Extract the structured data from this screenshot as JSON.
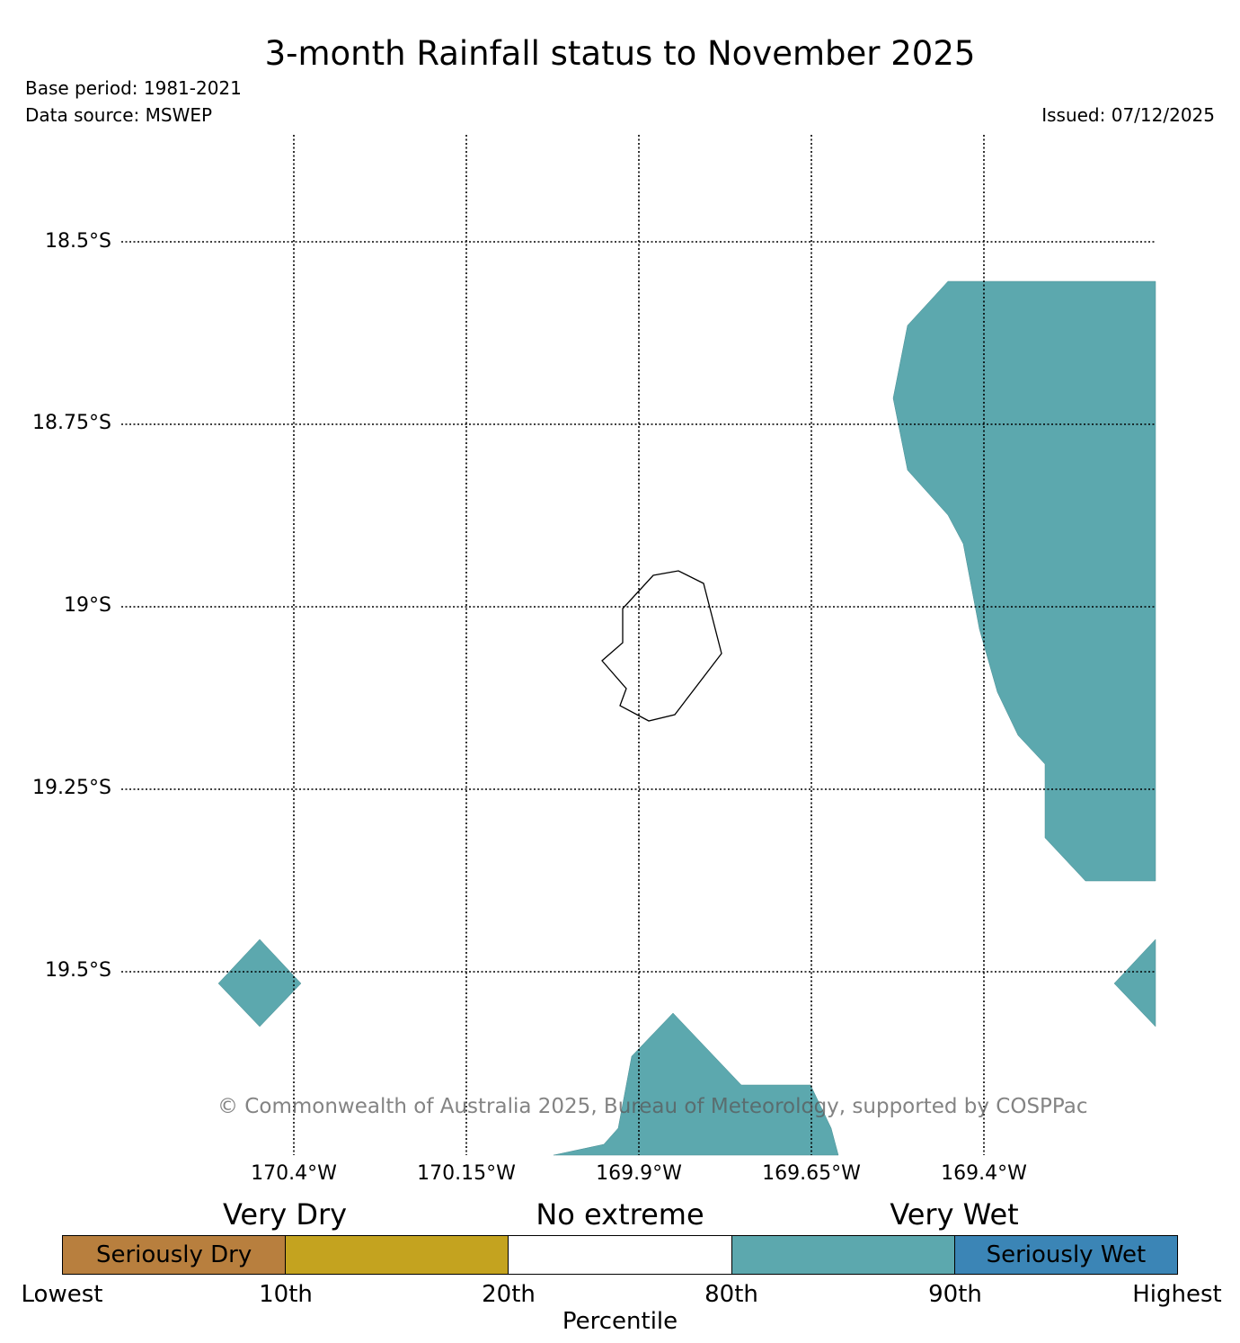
{
  "title": "3-month Rainfall status to November 2025",
  "base_period": "Base period: 1981-2021",
  "data_source": "Data source: MSWEP",
  "issued": "Issued: 07/12/2025",
  "map": {
    "lat_labels": [
      "18.5°S",
      "18.75°S",
      "19°S",
      "19.25°S",
      "19.5°S"
    ],
    "lon_labels": [
      "170.4°W",
      "170.15°W",
      "169.9°W",
      "169.65°W",
      "169.4°W"
    ],
    "regions": [
      {
        "name": "east-wet-region",
        "category": "Very Wet"
      },
      {
        "name": "west-wet-patch",
        "category": "Very Wet"
      },
      {
        "name": "south-wet-region",
        "category": "Very Wet"
      },
      {
        "name": "east-edge-wet-patch",
        "category": "Very Wet"
      }
    ],
    "island": "Niue outline"
  },
  "copyright": "© Commonwealth of Australia 2025, Bureau of Meteorology, supported by COSPPac",
  "legend": {
    "categories": [
      "Very Dry",
      "No extreme",
      "Very Wet"
    ],
    "segments": [
      {
        "label": "Seriously Dry",
        "color": "#b87f3e"
      },
      {
        "label": "",
        "color": "#c4a31f"
      },
      {
        "label": "",
        "color": "#ffffff"
      },
      {
        "label": "",
        "color": "#5ca8ae"
      },
      {
        "label": "Seriously Wet",
        "color": "#3b85b6"
      }
    ],
    "ticks": [
      "Lowest",
      "10th",
      "20th",
      "80th",
      "90th",
      "Highest"
    ],
    "axis_label": "Percentile"
  },
  "colors": {
    "very_wet": "#5ca8ae",
    "seriously_wet": "#3b85b6",
    "very_dry": "#c4a31f",
    "seriously_dry": "#b87f3e"
  }
}
